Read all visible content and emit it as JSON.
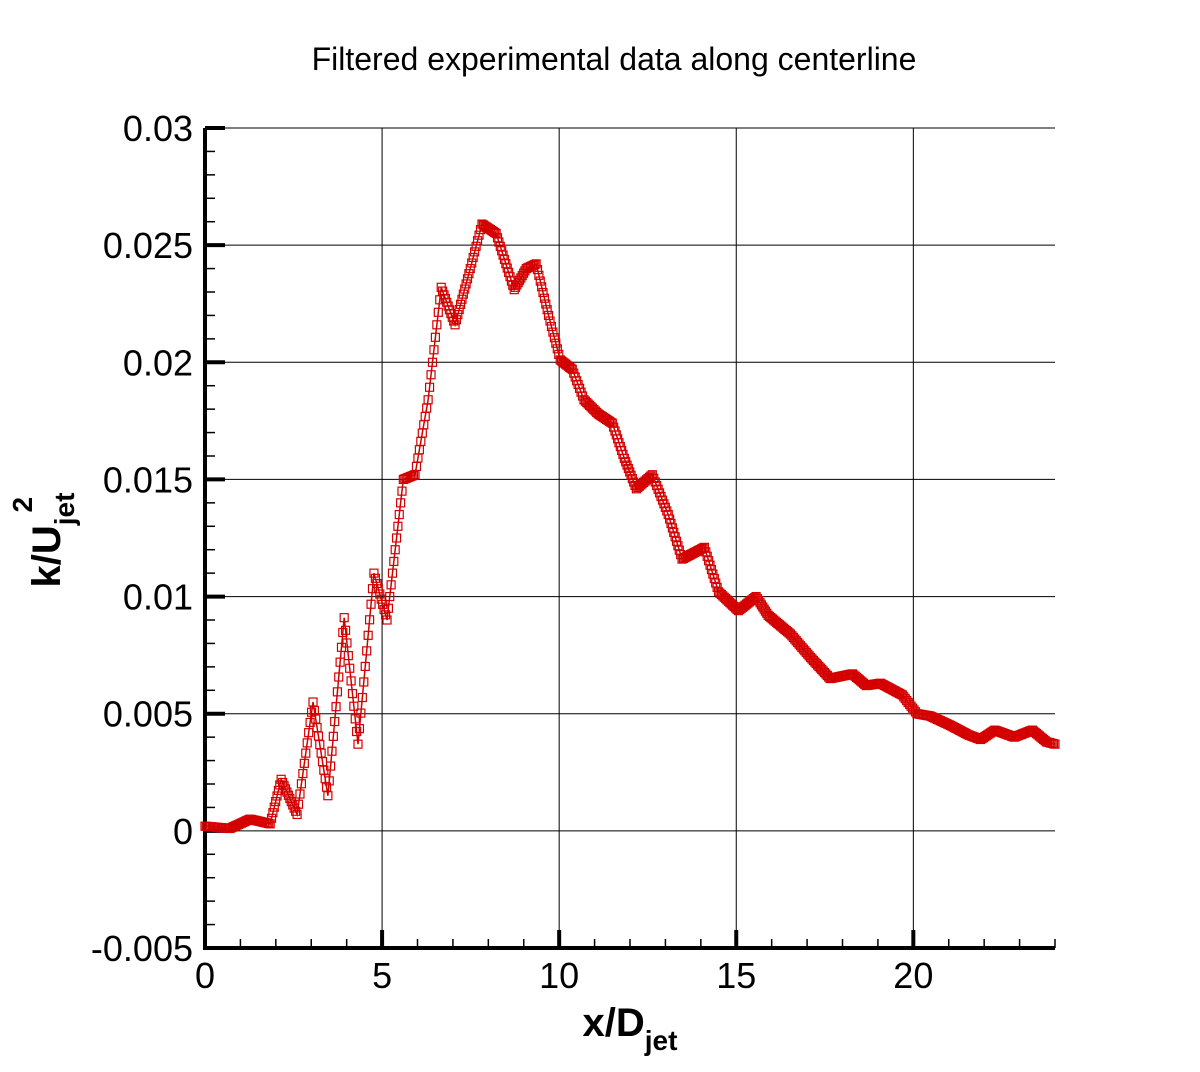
{
  "chart_data": {
    "type": "scatter",
    "title": "Filtered experimental data along centerline",
    "xlabel": {
      "main": "x/D",
      "sub": "jet"
    },
    "ylabel": {
      "main": "k/U",
      "sub": "jet",
      "sup": "2"
    },
    "xlim": [
      0,
      24
    ],
    "ylim": [
      -0.005,
      0.03
    ],
    "xticks": [
      0,
      5,
      10,
      15,
      20
    ],
    "xtick_labels": [
      "0",
      "5",
      "10",
      "15",
      "20"
    ],
    "yticks": [
      -0.005,
      0,
      0.005,
      0.01,
      0.015,
      0.02,
      0.025,
      0.03
    ],
    "ytick_labels": [
      "-0.005",
      "0",
      "0.005",
      "0.01",
      "0.015",
      "0.02",
      "0.025",
      "0.03"
    ],
    "x_minor_step": 1,
    "y_minor_step": 0.001,
    "grid": true,
    "marker": "open-square",
    "color": "#d40000",
    "series": [
      {
        "x": [
          0,
          0.7,
          1.27,
          1.84,
          2.15,
          2.6,
          3.05,
          3.47,
          3.93,
          4.32,
          4.77,
          5.14,
          5.6,
          5.93,
          6.3,
          6.67,
          7.06,
          7.49,
          7.82,
          8.22,
          8.73,
          9.07,
          9.35,
          9.7,
          10.03,
          10.37,
          10.7,
          11.1,
          11.5,
          11.84,
          12.18,
          12.63,
          13.08,
          13.47,
          14.1,
          14.5,
          15.06,
          15.56,
          15.9,
          16.53,
          17.1,
          17.65,
          18.28,
          18.67,
          19.07,
          19.69,
          20.1,
          20.48,
          21.05,
          21.55,
          21.9,
          22.3,
          22.85,
          23.36,
          23.76,
          24
        ],
        "y": [
          0.0002,
          0.0001,
          0.0005,
          0.0003,
          0.0022,
          0.0007,
          0.0055,
          0.0015,
          0.0091,
          0.0037,
          0.011,
          0.009,
          0.015,
          0.0152,
          0.0184,
          0.0232,
          0.0216,
          0.024,
          0.0259,
          0.0255,
          0.0231,
          0.024,
          0.0242,
          0.022,
          0.0201,
          0.0197,
          0.0184,
          0.0178,
          0.0174,
          0.0159,
          0.0146,
          0.0152,
          0.0135,
          0.0116,
          0.0121,
          0.0102,
          0.0094,
          0.01,
          0.0092,
          0.0084,
          0.0074,
          0.0065,
          0.0067,
          0.0062,
          0.0063,
          0.0058,
          0.005,
          0.0049,
          0.0045,
          0.0041,
          0.0039,
          0.0043,
          0.004,
          0.0043,
          0.0038,
          0.0037
        ]
      }
    ]
  }
}
